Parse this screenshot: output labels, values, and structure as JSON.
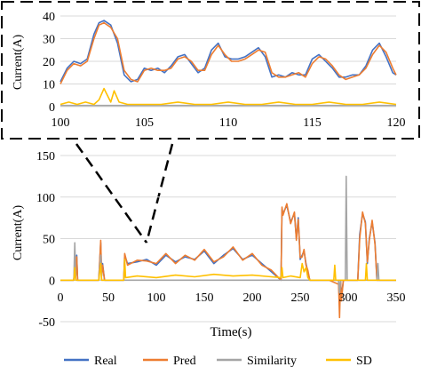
{
  "chart_data": [
    {
      "panel": "inset",
      "type": "line",
      "xlabel": "",
      "ylabel": "Current(A)",
      "xlim": [
        100,
        120
      ],
      "ylim": [
        0,
        40
      ],
      "x_ticks": [
        "100",
        "105",
        "110",
        "115",
        "120"
      ],
      "y_ticks": [
        "0",
        "10",
        "20",
        "30",
        "40"
      ],
      "grid": "horizontal",
      "series": [
        {
          "name": "Real",
          "color": "#4472C4",
          "x": [
            100,
            100.4,
            100.8,
            101.2,
            101.6,
            102,
            102.3,
            102.6,
            103,
            103.4,
            103.8,
            104.2,
            104.6,
            105,
            105.4,
            105.8,
            106.2,
            106.6,
            107,
            107.4,
            107.8,
            108.2,
            108.6,
            109,
            109.4,
            109.8,
            110.2,
            110.6,
            111,
            111.4,
            111.8,
            112.2,
            112.6,
            113,
            113.4,
            113.8,
            114.2,
            114.6,
            115,
            115.4,
            115.8,
            116.2,
            116.6,
            117,
            117.4,
            117.8,
            118.2,
            118.6,
            119,
            119.4,
            119.8,
            120
          ],
          "y": [
            11,
            17,
            20,
            19,
            21,
            32,
            37,
            38,
            36,
            28,
            14,
            11,
            12,
            17,
            16,
            17,
            15,
            18,
            22,
            23,
            19,
            15,
            17,
            25,
            28,
            22,
            21,
            21,
            22,
            24,
            26,
            22,
            13,
            14,
            13,
            15,
            14,
            14,
            21,
            23,
            20,
            17,
            13,
            13,
            14,
            14,
            18,
            25,
            28,
            22,
            15,
            14
          ]
        },
        {
          "name": "Pred",
          "color": "#ED7D31",
          "x": [
            100,
            100.4,
            100.8,
            101.2,
            101.6,
            102,
            102.3,
            102.6,
            103,
            103.4,
            103.8,
            104.2,
            104.6,
            105,
            105.4,
            105.8,
            106.2,
            106.6,
            107,
            107.4,
            107.8,
            108.2,
            108.6,
            109,
            109.4,
            109.8,
            110.2,
            110.6,
            111,
            111.4,
            111.8,
            112.2,
            112.6,
            113,
            113.4,
            113.8,
            114.2,
            114.6,
            115,
            115.4,
            115.8,
            116.2,
            116.6,
            117,
            117.4,
            117.8,
            118.2,
            118.6,
            119,
            119.4,
            119.8,
            120
          ],
          "y": [
            10,
            16,
            19,
            18,
            20,
            30,
            36,
            37,
            35,
            30,
            16,
            12,
            11,
            16,
            17,
            16,
            16,
            17,
            21,
            22,
            20,
            16,
            16,
            23,
            27,
            23,
            20,
            20,
            21,
            23,
            25,
            24,
            15,
            13,
            13,
            14,
            15,
            13,
            19,
            22,
            21,
            18,
            14,
            12,
            13,
            14,
            17,
            23,
            27,
            24,
            17,
            14
          ]
        },
        {
          "name": "Similarity",
          "color": "#A5A5A5",
          "x": [
            100,
            105,
            110,
            115,
            120
          ],
          "y": [
            0.5,
            0.5,
            0.5,
            0.5,
            0.5
          ]
        },
        {
          "name": "SD",
          "color": "#FFC000",
          "x": [
            100,
            100.5,
            101,
            101.5,
            102,
            102.3,
            102.6,
            103,
            103.2,
            103.5,
            104,
            104.5,
            105,
            106,
            107,
            108,
            109,
            110,
            111,
            112,
            113,
            114,
            115,
            116,
            117,
            118,
            119,
            120
          ],
          "y": [
            1,
            2,
            1,
            2,
            1,
            3,
            8,
            2,
            7,
            2,
            1,
            1,
            1,
            1,
            2,
            1,
            1,
            2,
            1,
            1,
            2,
            1,
            1,
            2,
            1,
            1,
            2,
            1
          ]
        }
      ]
    },
    {
      "panel": "main",
      "type": "line",
      "xlabel": "Time(s)",
      "ylabel": "Current(A)",
      "xlim": [
        0,
        350
      ],
      "ylim": [
        -50,
        150
      ],
      "x_ticks": [
        "0",
        "50",
        "100",
        "150",
        "200",
        "250",
        "300",
        "350"
      ],
      "y_ticks": [
        "-50",
        "0",
        "50",
        "100",
        "150"
      ],
      "grid": "horizontal",
      "legend": "bottom",
      "series": [
        {
          "name": "Real",
          "color": "#4472C4",
          "x": [
            0,
            14,
            15,
            16,
            17,
            18,
            25,
            40,
            42,
            43,
            44,
            46,
            60,
            66,
            67,
            70,
            80,
            90,
            100,
            110,
            120,
            130,
            140,
            150,
            160,
            170,
            180,
            190,
            200,
            210,
            220,
            230,
            231,
            232,
            236,
            240,
            244,
            246,
            248,
            250,
            252,
            254,
            256,
            258,
            260,
            270,
            280,
            290,
            291,
            292,
            293,
            295,
            300,
            310,
            312,
            315,
            318,
            320,
            322,
            325,
            328,
            330,
            335,
            350
          ],
          "y": [
            0,
            0,
            20,
            5,
            30,
            0,
            0,
            0,
            45,
            5,
            20,
            0,
            0,
            0,
            30,
            20,
            22,
            25,
            18,
            30,
            22,
            28,
            25,
            35,
            20,
            30,
            38,
            25,
            30,
            20,
            10,
            0,
            85,
            80,
            90,
            70,
            80,
            50,
            75,
            25,
            30,
            35,
            20,
            10,
            0,
            0,
            0,
            0,
            -30,
            0,
            -20,
            0,
            0,
            0,
            55,
            80,
            70,
            20,
            50,
            70,
            45,
            0,
            0,
            0
          ]
        },
        {
          "name": "Pred",
          "color": "#ED7D31",
          "x": [
            0,
            14,
            15,
            16,
            17,
            18,
            25,
            40,
            42,
            43,
            44,
            46,
            60,
            66,
            67,
            70,
            80,
            90,
            100,
            110,
            120,
            130,
            140,
            150,
            160,
            170,
            180,
            190,
            200,
            210,
            220,
            230,
            231,
            232,
            236,
            240,
            244,
            246,
            248,
            250,
            252,
            254,
            256,
            258,
            260,
            270,
            280,
            290,
            291,
            292,
            293,
            295,
            300,
            310,
            312,
            315,
            318,
            320,
            322,
            325,
            328,
            330,
            335,
            350
          ],
          "y": [
            0,
            0,
            18,
            6,
            28,
            0,
            0,
            0,
            48,
            6,
            18,
            0,
            0,
            0,
            32,
            18,
            24,
            23,
            20,
            32,
            20,
            30,
            24,
            37,
            22,
            28,
            40,
            24,
            32,
            18,
            12,
            0,
            88,
            78,
            92,
            68,
            82,
            48,
            73,
            27,
            28,
            37,
            18,
            12,
            0,
            0,
            0,
            -5,
            -45,
            0,
            -25,
            0,
            0,
            0,
            50,
            82,
            68,
            22,
            48,
            72,
            43,
            0,
            0,
            0
          ]
        },
        {
          "name": "Similarity",
          "color": "#A5A5A5",
          "x": [
            0,
            14,
            15,
            16,
            40,
            42,
            43,
            250,
            290,
            291,
            292,
            297,
            298,
            299,
            300,
            330,
            331,
            332,
            350
          ],
          "y": [
            0,
            0,
            45,
            0,
            0,
            30,
            0,
            0,
            0,
            -15,
            0,
            0,
            125,
            0,
            0,
            0,
            20,
            0,
            0
          ]
        },
        {
          "name": "SD",
          "color": "#FFC000",
          "x": [
            0,
            14,
            15,
            16,
            40,
            42,
            43,
            60,
            66,
            67,
            68,
            80,
            100,
            120,
            140,
            160,
            180,
            200,
            220,
            230,
            231,
            232,
            240,
            250,
            252,
            254,
            256,
            258,
            260,
            280,
            285,
            286,
            287,
            300,
            310,
            318,
            319,
            320,
            330,
            350
          ],
          "y": [
            0,
            0,
            15,
            0,
            0,
            20,
            0,
            0,
            0,
            25,
            3,
            5,
            3,
            6,
            4,
            7,
            5,
            6,
            4,
            3,
            15,
            3,
            5,
            3,
            20,
            10,
            15,
            3,
            0,
            0,
            0,
            18,
            0,
            0,
            0,
            0,
            20,
            0,
            0,
            0
          ]
        }
      ]
    }
  ]
}
